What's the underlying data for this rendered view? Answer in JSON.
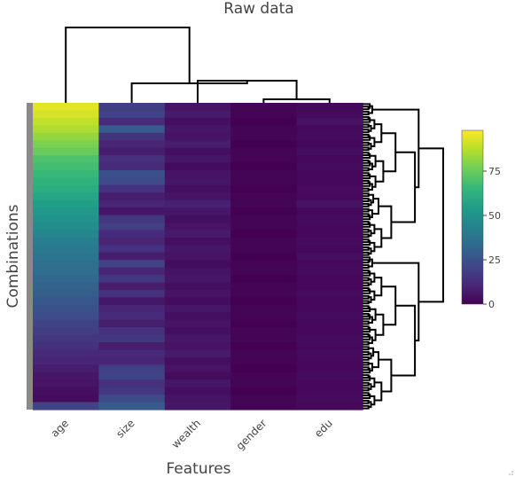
{
  "chart_data": {
    "type": "heatmap",
    "title": "Raw data",
    "xlabel": "Features",
    "ylabel": "Combinations",
    "columns": [
      "age",
      "size",
      "wealth",
      "gender",
      "edu"
    ],
    "column_profiles": {
      "age": [
        94,
        92,
        89,
        86,
        82,
        78,
        75,
        70,
        68,
        66,
        63,
        61,
        58,
        55,
        52,
        50,
        48,
        45,
        42,
        40,
        38,
        36,
        35,
        33,
        31,
        29,
        27,
        25,
        23,
        20,
        18,
        16,
        14,
        12,
        10,
        8,
        6,
        5,
        4,
        3,
        20
      ],
      "size": [
        18,
        20,
        12,
        28,
        15,
        10,
        8,
        14,
        12,
        24,
        22,
        14,
        8,
        10,
        6,
        16,
        18,
        12,
        10,
        14,
        8,
        20,
        10,
        16,
        8,
        14,
        6,
        10,
        12,
        8,
        14,
        16,
        8,
        12,
        10,
        18,
        20,
        14,
        16,
        22,
        28
      ],
      "wealth": [
        5,
        7,
        4,
        6,
        5,
        8,
        4,
        6,
        3,
        5,
        6,
        4,
        5,
        9,
        6,
        4,
        5,
        7,
        4,
        6,
        5,
        3,
        5,
        6,
        4,
        5,
        3,
        6,
        4,
        5,
        4,
        6,
        5,
        7,
        4,
        5,
        3,
        6,
        4,
        5,
        6
      ],
      "gender": [
        1,
        1,
        0,
        1,
        1,
        0,
        1,
        1,
        0,
        1,
        1,
        0,
        1,
        1,
        0,
        1,
        1,
        0,
        1,
        1,
        0,
        1,
        1,
        0,
        1,
        1,
        0,
        1,
        1,
        0,
        1,
        1,
        0,
        1,
        1,
        0,
        1,
        1,
        0,
        1,
        1
      ],
      "edu": [
        2,
        3,
        5,
        2,
        3,
        2,
        4,
        2,
        3,
        2,
        2,
        3,
        2,
        5,
        2,
        3,
        2,
        2,
        3,
        2,
        4,
        2,
        3,
        2,
        2,
        3,
        2,
        2,
        3,
        2,
        2,
        3,
        2,
        3,
        2,
        2,
        3,
        2,
        2,
        3,
        2
      ]
    },
    "colorbar": {
      "min": 0,
      "max": 98,
      "ticks": [
        0,
        25,
        50,
        75
      ],
      "colorscale": "viridis"
    },
    "col_dendrogram": "age | (size | (wealth | (gender | edu)))",
    "row_dendrogram": "hierarchical clustering of combinations"
  },
  "colors": {
    "viridis": [
      "#440154",
      "#482878",
      "#3e4989",
      "#31688e",
      "#26828e",
      "#1f9e89",
      "#35b779",
      "#6ece58",
      "#b5de2b",
      "#fde725"
    ],
    "tree": "#000000",
    "sidebar": "#8a8a8a"
  }
}
